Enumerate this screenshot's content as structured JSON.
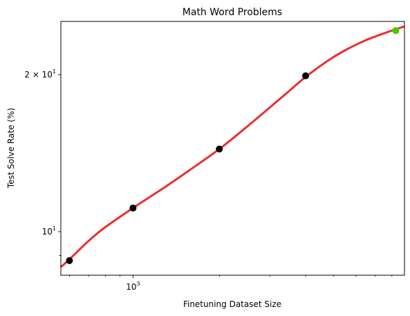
{
  "chart_data": {
    "type": "line",
    "title": "Math Word Problems",
    "xlabel": "Finetuning Dataset Size",
    "ylabel": "Test Solve Rate (%)",
    "x_scale": "log",
    "y_scale": "log",
    "xlim": [
      560,
      8850
    ],
    "ylim": [
      8.25,
      25.3
    ],
    "x_major_ticks": [
      {
        "value": 1000,
        "base": "10",
        "exp": "3"
      }
    ],
    "y_major_ticks": [
      {
        "value": 10,
        "mant": "",
        "base": "10",
        "exp": "1"
      },
      {
        "value": 20,
        "mant": "2 × ",
        "base": "10",
        "exp": "1"
      }
    ],
    "x_minor_ticks": [
      600,
      700,
      800,
      900,
      2000,
      3000,
      4000,
      5000,
      6000,
      7000,
      8000
    ],
    "y_minor_ticks": [
      9,
      9.0,
      30
    ],
    "grid": false,
    "series": [
      {
        "kind": "fit-curve",
        "color": "#ee2222",
        "x": [
          560,
          600,
          700,
          800,
          1000,
          1300,
          1600,
          2000,
          2500,
          3000,
          3500,
          4000,
          4800,
          5600,
          6500,
          7500,
          8200,
          8850
        ],
        "y": [
          8.55,
          8.85,
          9.6,
          10.2,
          11.1,
          12.2,
          13.2,
          14.4,
          15.9,
          17.3,
          18.6,
          19.8,
          21.3,
          22.4,
          23.3,
          24.0,
          24.4,
          24.75
        ]
      },
      {
        "kind": "observed",
        "color": "#000000",
        "x": [
          600,
          1000,
          2000,
          4000
        ],
        "y": [
          8.8,
          11.1,
          14.4,
          19.9
        ]
      },
      {
        "kind": "highlight",
        "color": "#44cc00",
        "x": [
          8250
        ],
        "y": [
          24.3
        ]
      }
    ]
  }
}
